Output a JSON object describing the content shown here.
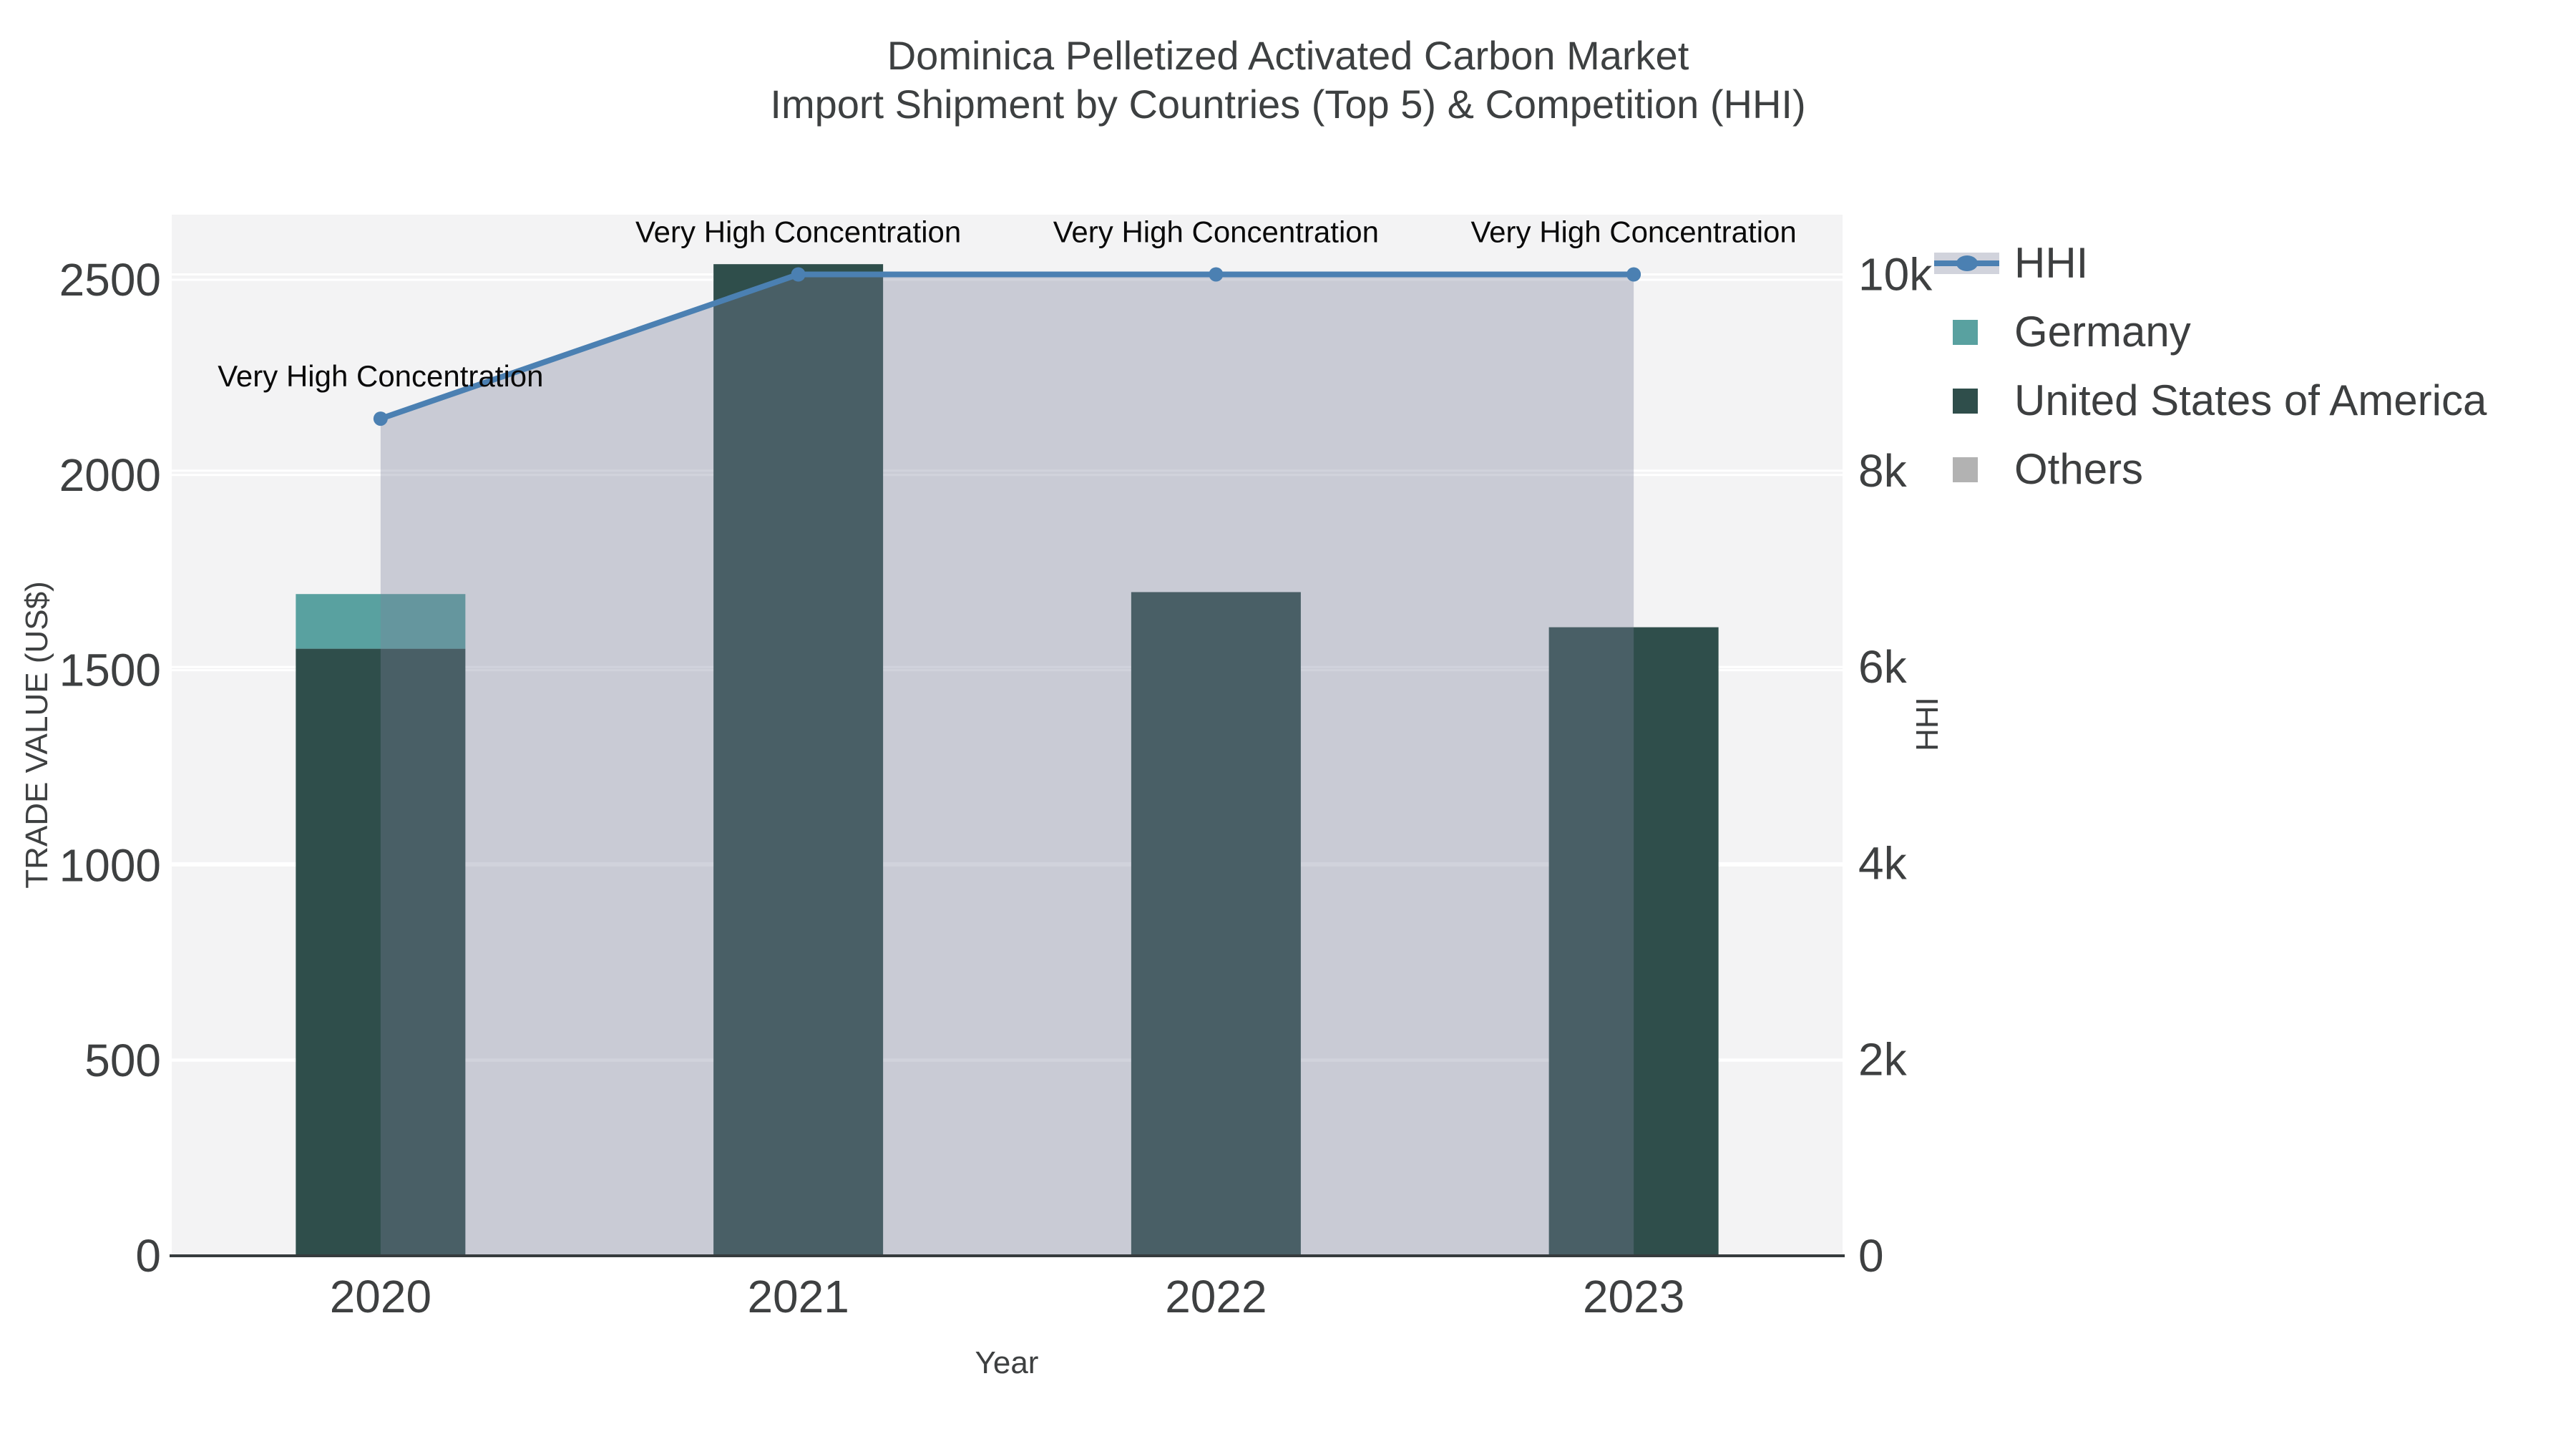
{
  "title": {
    "line1": "Dominica Pelletized Activated Carbon Market",
    "line2": "Import Shipment by Countries (Top 5) & Competition (HHI)"
  },
  "chart_data": {
    "type": "bar+line",
    "categories": [
      "2020",
      "2021",
      "2022",
      "2023"
    ],
    "bar_series": [
      {
        "name": "Germany",
        "color": "#59a1a0",
        "values": [
          140,
          0,
          0,
          0
        ]
      },
      {
        "name": "United States of America",
        "color": "#2f4e4b",
        "values": [
          1555,
          2540,
          1700,
          1610
        ]
      },
      {
        "name": "Others",
        "color": "#b2b2b2",
        "values": [
          0,
          0,
          0,
          0
        ]
      }
    ],
    "line_series": {
      "name": "HHI",
      "axis": "right",
      "color": "#4b80b2",
      "fill_color": "rgba(122,130,154,0.35)",
      "values": [
        8530,
        10000,
        10000,
        10000
      ]
    },
    "point_labels": [
      "Very High Concentration",
      "Very High Concentration",
      "Very High Concentration",
      "Very High Concentration"
    ],
    "left_axis": {
      "title": "TRADE VALUE (US$)",
      "max": 2500,
      "tick_values": [
        0,
        500,
        1000,
        1500,
        2000,
        2500
      ],
      "tick_labels": [
        "0",
        "500",
        "1000",
        "1500",
        "2000",
        "2500"
      ]
    },
    "right_axis": {
      "title": "HHI",
      "max": 10000,
      "tick_values": [
        0,
        2000,
        4000,
        6000,
        8000,
        10000
      ],
      "tick_labels": [
        "0",
        "2k",
        "4k",
        "6k",
        "8k",
        "10k"
      ]
    },
    "x_axis": {
      "title": "Year"
    },
    "legend_position": "upper right outside",
    "grid": true,
    "plot_bg": "#f3f3f4"
  },
  "legend": {
    "items": [
      {
        "label": "HHI",
        "type": "line",
        "color": "#4b80b2"
      },
      {
        "label": "Germany",
        "type": "square",
        "color": "#59a1a0"
      },
      {
        "label": "United States of America",
        "type": "square",
        "color": "#2f4e4b"
      },
      {
        "label": "Others",
        "type": "square",
        "color": "#b2b2b2"
      }
    ]
  },
  "colors": {
    "text": "#3e4041",
    "annotation": "#0a0a0a",
    "gridline": "#ffffff",
    "axis_spine": "#363b3d",
    "plot_background": "#f3f3f4",
    "page_background": "#ffffff"
  }
}
